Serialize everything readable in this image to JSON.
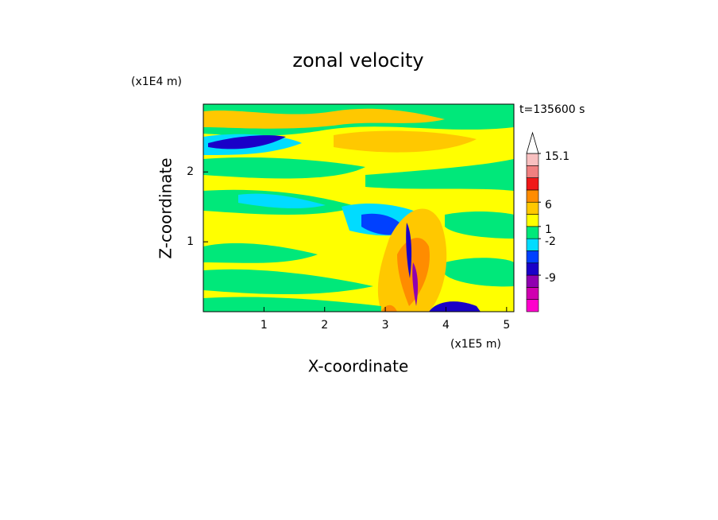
{
  "chart_data": {
    "type": "contour",
    "title": "zonal velocity",
    "xlabel": "X-coordinate",
    "ylabel": "Z-coordinate",
    "x_unit_label": "(x1E5 m)",
    "y_unit_label": "(x1E4 m)",
    "annotation": "t=135600 s",
    "xlim": [
      0,
      5.12
    ],
    "ylim": [
      0,
      2.97
    ],
    "xticks": [
      1,
      2,
      3,
      4,
      5
    ],
    "yticks": [
      1,
      2
    ],
    "colorbar": {
      "bounds": [
        -15,
        -13,
        -11,
        -9,
        -7,
        -5,
        -2,
        1,
        3,
        6,
        9,
        11,
        13,
        15.1
      ],
      "colors": [
        "#ff00cc",
        "#d000b0",
        "#9000b0",
        "#1a00c8",
        "#0040ff",
        "#00dcff",
        "#00e87a",
        "#ffff00",
        "#ffc800",
        "#ff8c00",
        "#f01818",
        "#f08080",
        "#f8c0c0"
      ],
      "ticks": [
        15.1,
        6,
        1,
        -2,
        -9
      ]
    }
  }
}
